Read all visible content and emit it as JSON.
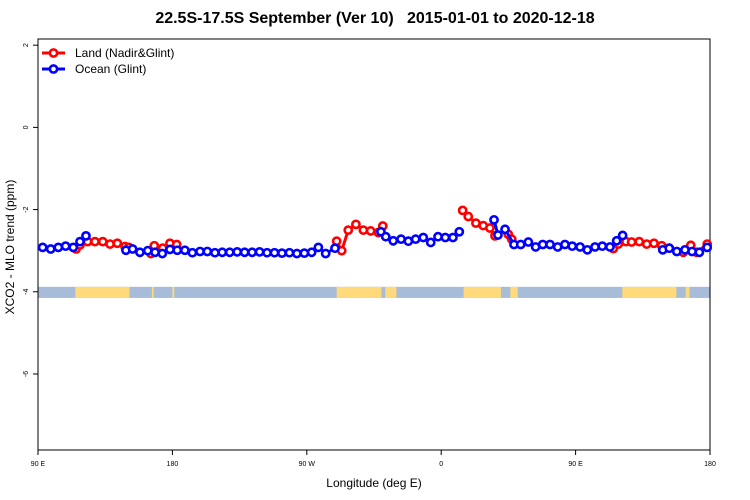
{
  "chart_data": {
    "type": "line",
    "title": "22.5S-17.5S September (Ver 10)   2015-01-01 to 2020-12-18",
    "xlabel": "Longitude (deg E)",
    "ylabel": "XCO2 - MLO trend (ppm)",
    "xlim": [
      90,
      450
    ],
    "ylim": [
      -7.85,
      2.15
    ],
    "x_ticks": [
      90,
      180,
      270,
      360,
      450
    ],
    "x_tick_labels": [
      "90 E",
      "180",
      "90 W",
      "0",
      "90 E",
      "180"
    ],
    "x_tick_values": [
      90,
      180,
      270,
      360,
      450,
      540
    ],
    "y_ticks": [
      2,
      0,
      -2,
      -4,
      -6
    ],
    "y_tick_labels": [
      "2",
      "0",
      "-2",
      "-4",
      "-6"
    ],
    "grid": false,
    "legend_position": "top-left",
    "land_mask": {
      "y_range": [
        -4.15,
        -3.88
      ],
      "ocean_color": "#a7bcd9",
      "land_color": "#ffd97a",
      "land_lon_ranges": [
        [
          110,
          139
        ],
        [
          151,
          152
        ],
        [
          162,
          163
        ],
        [
          250,
          274
        ],
        [
          276,
          282
        ],
        [
          318,
          338
        ],
        [
          343,
          347
        ],
        [
          403,
          432
        ],
        [
          437,
          439
        ]
      ]
    },
    "series": [
      {
        "name": "Land (Nadir&Glint)",
        "color": "#ff0000",
        "points": [
          [
            110.4,
            -2.96
          ],
          [
            112.5,
            -2.86
          ],
          [
            116.6,
            -2.78
          ],
          [
            120.5,
            -2.78
          ],
          [
            124.7,
            -2.78
          ],
          [
            128.6,
            -2.84
          ],
          [
            132.5,
            -2.82
          ],
          [
            136.6,
            -2.9
          ],
          [
            138.7,
            -2.92
          ],
          [
            150.5,
            -3.07
          ],
          [
            152.3,
            -2.88
          ],
          [
            156.8,
            -2.94
          ],
          [
            160.7,
            -2.82
          ],
          [
            164.3,
            -2.85
          ],
          [
            250,
            -2.77
          ],
          [
            252.7,
            -3.0
          ],
          [
            256.2,
            -2.5
          ],
          [
            260.3,
            -2.36
          ],
          [
            264.3,
            -2.5
          ],
          [
            268.2,
            -2.52
          ],
          [
            272.3,
            -2.56
          ],
          [
            274.7,
            -2.4
          ],
          [
            317.5,
            -2.02
          ],
          [
            320.5,
            -2.17
          ],
          [
            324.6,
            -2.33
          ],
          [
            328.5,
            -2.39
          ],
          [
            332.1,
            -2.45
          ],
          [
            334.8,
            -2.64
          ],
          [
            341.9,
            -2.6
          ],
          [
            343.8,
            -2.72
          ],
          [
            398.2,
            -2.95
          ],
          [
            400.9,
            -2.84
          ],
          [
            405,
            -2.78
          ],
          [
            408,
            -2.79
          ],
          [
            412.1,
            -2.78
          ],
          [
            416.1,
            -2.84
          ],
          [
            420,
            -2.82
          ],
          [
            424.1,
            -2.88
          ],
          [
            428.2,
            -2.94
          ],
          [
            435.7,
            -3.04
          ],
          [
            439.7,
            -2.87
          ],
          [
            442.9,
            -3.04
          ],
          [
            448.5,
            -2.84
          ]
        ]
      },
      {
        "name": "Ocean (Glint)",
        "color": "#0000ff",
        "points": [
          [
            92.5,
            -2.92
          ],
          [
            96.8,
            -2.96
          ],
          [
            100.9,
            -2.92
          ],
          [
            104.8,
            -2.89
          ],
          [
            108.9,
            -2.92
          ],
          [
            112.5,
            -2.78
          ],
          [
            115.7,
            -2.64
          ],
          [
            137.1,
            -2.99
          ],
          [
            140.7,
            -2.96
          ],
          [
            144.6,
            -3.04
          ],
          [
            148.8,
            -3.0
          ],
          [
            152.7,
            -3.04
          ],
          [
            156.6,
            -3.07
          ],
          [
            160.7,
            -2.97
          ],
          [
            164.6,
            -2.99
          ],
          [
            168.7,
            -2.99
          ],
          [
            172.7,
            -3.05
          ],
          [
            176.8,
            -3.02
          ],
          [
            180.7,
            -3.02
          ],
          [
            184.8,
            -3.05
          ],
          [
            188.7,
            -3.04
          ],
          [
            192.7,
            -3.04
          ],
          [
            196.7,
            -3.03
          ],
          [
            200.7,
            -3.04
          ],
          [
            204.7,
            -3.04
          ],
          [
            208.7,
            -3.03
          ],
          [
            212.7,
            -3.05
          ],
          [
            216.7,
            -3.05
          ],
          [
            220.7,
            -3.06
          ],
          [
            224.7,
            -3.05
          ],
          [
            228.7,
            -3.07
          ],
          [
            232.7,
            -3.06
          ],
          [
            236.6,
            -3.04
          ],
          [
            240.2,
            -2.92
          ],
          [
            244.1,
            -3.07
          ],
          [
            249.1,
            -2.94
          ],
          [
            273.7,
            -2.54
          ],
          [
            276.3,
            -2.66
          ],
          [
            280.3,
            -2.76
          ],
          [
            284.5,
            -2.72
          ],
          [
            288.4,
            -2.77
          ],
          [
            292.3,
            -2.72
          ],
          [
            296.4,
            -2.68
          ],
          [
            300.4,
            -2.8
          ],
          [
            304.3,
            -2.66
          ],
          [
            308.2,
            -2.68
          ],
          [
            312.3,
            -2.68
          ],
          [
            315.7,
            -2.54
          ],
          [
            334.3,
            -2.25
          ],
          [
            336.4,
            -2.62
          ],
          [
            340.2,
            -2.48
          ],
          [
            345,
            -2.85
          ],
          [
            348.6,
            -2.85
          ],
          [
            352.7,
            -2.79
          ],
          [
            356.6,
            -2.91
          ],
          [
            360.4,
            -2.85
          ],
          [
            364.3,
            -2.85
          ],
          [
            368.4,
            -2.91
          ],
          [
            372.3,
            -2.85
          ],
          [
            376.2,
            -2.89
          ],
          [
            380.4,
            -2.91
          ],
          [
            384.3,
            -2.98
          ],
          [
            388.4,
            -2.91
          ],
          [
            392.3,
            -2.89
          ],
          [
            396.4,
            -2.91
          ],
          [
            400,
            -2.76
          ],
          [
            403.2,
            -2.63
          ],
          [
            424.7,
            -2.98
          ],
          [
            428.2,
            -2.94
          ],
          [
            432.2,
            -3.02
          ],
          [
            436.6,
            -2.98
          ],
          [
            440.4,
            -3.02
          ],
          [
            444.3,
            -3.04
          ],
          [
            448.5,
            -2.92
          ]
        ]
      }
    ]
  }
}
